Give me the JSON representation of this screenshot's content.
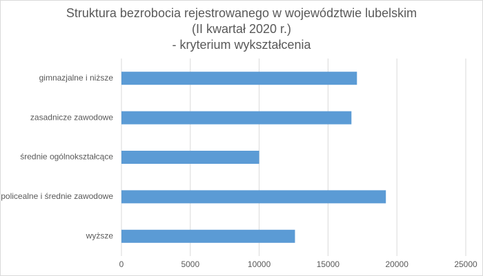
{
  "chart_data": {
    "type": "bar",
    "orientation": "horizontal",
    "title": [
      "Struktura bezrobocia rejestrowanego w województwie lubelskim",
      "(II kwartał 2020 r.)",
      "- kryterium wykształcenia"
    ],
    "categories": [
      "gimnazjalne i niższe",
      "zasadnicze zawodowe",
      "średnie ogólnokształcące",
      "policealne i średnie zawodowe",
      "wyższe"
    ],
    "values": [
      17100,
      16700,
      10000,
      19200,
      12600
    ],
    "color": "#5b9bd5",
    "xlim": [
      0,
      25000
    ],
    "xticks": [
      0,
      5000,
      10000,
      15000,
      20000,
      25000
    ],
    "grid": true
  }
}
